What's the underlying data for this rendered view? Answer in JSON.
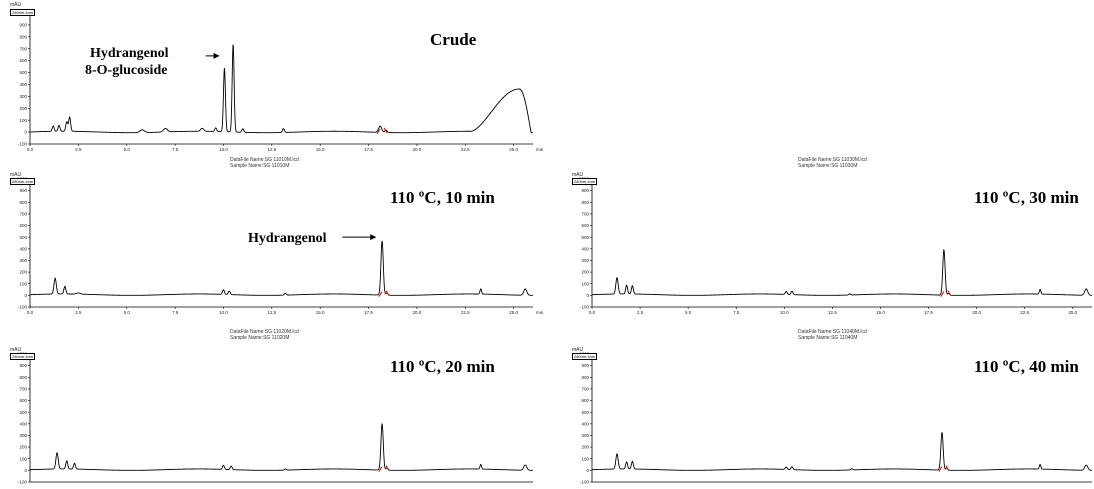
{
  "chart_data": [
    {
      "type": "line",
      "id": "crude",
      "title": "Crude",
      "y_unit": "mAU",
      "detector_tag": "280nm,4nm",
      "ylim": [
        -100,
        1000
      ],
      "xlim": [
        0,
        26
      ],
      "yticks": [
        "-100",
        "0",
        "100",
        "200",
        "300",
        "400",
        "500",
        "600",
        "700",
        "800",
        "900",
        "1000"
      ],
      "xticks": [
        "0.0",
        "2.5",
        "5.0",
        "7.5",
        "10.0",
        "12.5",
        "15.0",
        "17.5",
        "20.0",
        "22.5",
        "25.0"
      ],
      "x_unit": "min",
      "footer": [
        "DataFile Name:SG 11010M.lcd",
        "Sample Name:SG 11010M"
      ],
      "annotation": {
        "text_line1": "Hydrangenol",
        "text_line2": "8-O-glucoside",
        "target_x": 9.8,
        "target_y": 640
      },
      "baseline": 5,
      "peaks": [
        {
          "x": 1.2,
          "y": 50,
          "w": 0.05
        },
        {
          "x": 1.5,
          "y": 55,
          "w": 0.05
        },
        {
          "x": 1.9,
          "y": 85,
          "w": 0.05
        },
        {
          "x": 2.05,
          "y": 125,
          "w": 0.05
        },
        {
          "x": 5.8,
          "y": 28,
          "w": 0.12
        },
        {
          "x": 7.0,
          "y": 35,
          "w": 0.1
        },
        {
          "x": 8.9,
          "y": 30,
          "w": 0.08
        },
        {
          "x": 9.6,
          "y": 35,
          "w": 0.05
        },
        {
          "x": 10.05,
          "y": 540,
          "w": 0.05
        },
        {
          "x": 10.5,
          "y": 745,
          "w": 0.05
        },
        {
          "x": 11.0,
          "y": 35,
          "w": 0.05
        },
        {
          "x": 13.1,
          "y": 38,
          "w": 0.05
        },
        {
          "x": 18.1,
          "y": 58,
          "w": 0.08
        },
        {
          "x": 18.4,
          "y": 25,
          "w": 0.06
        }
      ],
      "hump": {
        "start": 22.8,
        "peak": 25.3,
        "end": 25.9,
        "y": 365
      }
    },
    {
      "type": "line",
      "id": "t10",
      "title": "110 ºC, 10 min",
      "y_unit": "mAU",
      "detector_tag": "280nm,4nm",
      "ylim": [
        -100,
        1000
      ],
      "xlim": [
        0,
        26
      ],
      "yticks": [
        "-100",
        "0",
        "100",
        "200",
        "300",
        "400",
        "500",
        "600",
        "700",
        "800",
        "900",
        "1000"
      ],
      "xticks": [
        "0.0",
        "2.5",
        "5.0",
        "7.5",
        "10.0",
        "12.5",
        "15.0",
        "17.5",
        "20.0",
        "22.5",
        "25.0"
      ],
      "x_unit": "min",
      "footer": [
        "DataFile Name:SG 11020M.lcd",
        "Sample Name:SG 11020M"
      ],
      "annotation": {
        "text_line1": "Hydrangenol",
        "text_line2": "",
        "target_x": 17.9,
        "target_y": 500
      },
      "baseline": 10,
      "peaks": [
        {
          "x": 1.3,
          "y": 145,
          "w": 0.06
        },
        {
          "x": 1.8,
          "y": 75,
          "w": 0.05
        },
        {
          "x": 2.5,
          "y": 20,
          "w": 0.1
        },
        {
          "x": 10.0,
          "y": 50,
          "w": 0.05
        },
        {
          "x": 10.3,
          "y": 40,
          "w": 0.05
        },
        {
          "x": 13.2,
          "y": 25,
          "w": 0.05
        },
        {
          "x": 18.2,
          "y": 475,
          "w": 0.06
        },
        {
          "x": 18.45,
          "y": 30,
          "w": 0.05
        },
        {
          "x": 23.3,
          "y": 55,
          "w": 0.04
        },
        {
          "x": 25.6,
          "y": 65,
          "w": 0.08
        }
      ]
    },
    {
      "type": "line",
      "id": "t30",
      "title": "110 ºC, 30 min",
      "y_unit": "mAU",
      "detector_tag": "280nm,4nm",
      "ylim": [
        -100,
        1000
      ],
      "xlim": [
        0,
        26
      ],
      "yticks": [
        "-100",
        "0",
        "100",
        "200",
        "300",
        "400",
        "500",
        "600",
        "700",
        "800",
        "900",
        "1000"
      ],
      "xticks": [
        "0.0",
        "2.5",
        "5.0",
        "7.5",
        "10.0",
        "12.5",
        "15.0",
        "17.5",
        "20.0",
        "22.5",
        "25.0"
      ],
      "x_unit": "min",
      "header": [
        "DataFile Name:SG 11030M.lcd",
        "Sample Name:SG 11030M"
      ],
      "footer": [
        "DataFile Name:SG 11040M.lcd",
        "Sample Name:SG 11040M"
      ],
      "baseline": 10,
      "peaks": [
        {
          "x": 1.3,
          "y": 150,
          "w": 0.06
        },
        {
          "x": 1.8,
          "y": 85,
          "w": 0.05
        },
        {
          "x": 2.1,
          "y": 80,
          "w": 0.05
        },
        {
          "x": 10.1,
          "y": 35,
          "w": 0.05
        },
        {
          "x": 10.4,
          "y": 40,
          "w": 0.05
        },
        {
          "x": 13.4,
          "y": 20,
          "w": 0.05
        },
        {
          "x": 18.3,
          "y": 400,
          "w": 0.06
        },
        {
          "x": 18.55,
          "y": 25,
          "w": 0.05
        },
        {
          "x": 23.3,
          "y": 50,
          "w": 0.04
        },
        {
          "x": 25.7,
          "y": 65,
          "w": 0.08
        }
      ]
    },
    {
      "type": "line",
      "id": "t20",
      "title": "110 ºC, 20 min",
      "y_unit": "mAU",
      "detector_tag": "280nm,4nm",
      "ylim": [
        -100,
        1000
      ],
      "xlim": [
        0,
        26
      ],
      "yticks": [
        "-100",
        "0",
        "100",
        "200",
        "300",
        "400",
        "500",
        "600",
        "700",
        "800",
        "900",
        "1000"
      ],
      "xticks": [],
      "x_unit": "",
      "baseline": 10,
      "peaks": [
        {
          "x": 1.4,
          "y": 150,
          "w": 0.06
        },
        {
          "x": 1.9,
          "y": 80,
          "w": 0.05
        },
        {
          "x": 2.3,
          "y": 60,
          "w": 0.05
        },
        {
          "x": 10.0,
          "y": 45,
          "w": 0.05
        },
        {
          "x": 10.4,
          "y": 40,
          "w": 0.05
        },
        {
          "x": 13.2,
          "y": 20,
          "w": 0.05
        },
        {
          "x": 18.2,
          "y": 410,
          "w": 0.06
        },
        {
          "x": 18.45,
          "y": 30,
          "w": 0.05
        },
        {
          "x": 23.3,
          "y": 50,
          "w": 0.04
        },
        {
          "x": 25.6,
          "y": 55,
          "w": 0.08
        }
      ]
    },
    {
      "type": "line",
      "id": "t40",
      "title": "110 ºC, 40 min",
      "y_unit": "mAU",
      "detector_tag": "280nm,4nm",
      "ylim": [
        -100,
        1000
      ],
      "xlim": [
        0,
        26
      ],
      "yticks": [
        "-100",
        "0",
        "100",
        "200",
        "300",
        "400",
        "500",
        "600",
        "700",
        "800",
        "900",
        "1000"
      ],
      "xticks": [],
      "x_unit": "",
      "baseline": 10,
      "peaks": [
        {
          "x": 1.3,
          "y": 140,
          "w": 0.06
        },
        {
          "x": 1.8,
          "y": 70,
          "w": 0.05
        },
        {
          "x": 2.1,
          "y": 75,
          "w": 0.05
        },
        {
          "x": 10.1,
          "y": 30,
          "w": 0.05
        },
        {
          "x": 10.4,
          "y": 35,
          "w": 0.05
        },
        {
          "x": 13.5,
          "y": 20,
          "w": 0.05
        },
        {
          "x": 18.2,
          "y": 335,
          "w": 0.06
        },
        {
          "x": 18.45,
          "y": 30,
          "w": 0.05
        },
        {
          "x": 23.3,
          "y": 50,
          "w": 0.04
        },
        {
          "x": 25.7,
          "y": 55,
          "w": 0.08
        }
      ]
    }
  ]
}
